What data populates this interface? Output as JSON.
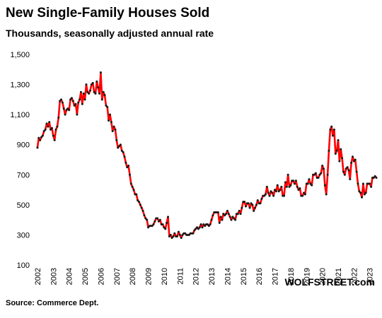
{
  "chart_data": {
    "type": "line",
    "title": "New Single-Family Houses Sold",
    "subtitle": "Thousands, seasonally adjusted annual rate",
    "source": "Source: Commerce Dept.",
    "watermark": "WOLFSTREET.com",
    "color": "#ff0000",
    "marker_color": "#1a1a1a",
    "categories": [
      "2002",
      null,
      null,
      null,
      null,
      null,
      null,
      null,
      null,
      null,
      null,
      null,
      "2003",
      null,
      null,
      null,
      null,
      null,
      null,
      null,
      null,
      null,
      null,
      null,
      "2004",
      null,
      null,
      null,
      null,
      null,
      null,
      null,
      null,
      null,
      null,
      null,
      "2005",
      null,
      null,
      null,
      null,
      null,
      null,
      null,
      null,
      null,
      null,
      null,
      "2006",
      null,
      null,
      null,
      null,
      null,
      null,
      null,
      null,
      null,
      null,
      null,
      "2007",
      null,
      null,
      null,
      null,
      null,
      null,
      null,
      null,
      null,
      null,
      null,
      "2008",
      null,
      null,
      null,
      null,
      null,
      null,
      null,
      null,
      null,
      null,
      null,
      "2009",
      null,
      null,
      null,
      null,
      null,
      null,
      null,
      null,
      null,
      null,
      null,
      "2010",
      null,
      null,
      null,
      null,
      null,
      null,
      null,
      null,
      null,
      null,
      null,
      "2011",
      null,
      null,
      null,
      null,
      null,
      null,
      null,
      null,
      null,
      null,
      null,
      "2012",
      null,
      null,
      null,
      null,
      null,
      null,
      null,
      null,
      null,
      null,
      null,
      "2013",
      null,
      null,
      null,
      null,
      null,
      null,
      null,
      null,
      null,
      null,
      null,
      "2014",
      null,
      null,
      null,
      null,
      null,
      null,
      null,
      null,
      null,
      null,
      null,
      "2015",
      null,
      null,
      null,
      null,
      null,
      null,
      null,
      null,
      null,
      null,
      null,
      "2016",
      null,
      null,
      null,
      null,
      null,
      null,
      null,
      null,
      null,
      null,
      null,
      "2017",
      null,
      null,
      null,
      null,
      null,
      null,
      null,
      null,
      null,
      null,
      null,
      "2018",
      null,
      null,
      null,
      null,
      null,
      null,
      null,
      null,
      null,
      null,
      null,
      "2019",
      null,
      null,
      null,
      null,
      null,
      null,
      null,
      null,
      null,
      null,
      null,
      "2020",
      null,
      null,
      null,
      null,
      null,
      null,
      null,
      null,
      null,
      null,
      null,
      "2021",
      null,
      null,
      null,
      null,
      null,
      null,
      null,
      null,
      null,
      null,
      null,
      "2022",
      null,
      null,
      null,
      null,
      null,
      null,
      null,
      null,
      null,
      null,
      null,
      "2023",
      null,
      null,
      null,
      null,
      null
    ],
    "values": [
      880,
      945,
      930,
      950,
      960,
      990,
      1000,
      1040,
      1020,
      1050,
      1000,
      1010,
      960,
      930,
      1000,
      1020,
      1080,
      1190,
      1200,
      1180,
      1140,
      1100,
      1130,
      1140,
      1130,
      1200,
      1210,
      1190,
      1160,
      1170,
      1100,
      1180,
      1200,
      1250,
      1170,
      1240,
      1200,
      1300,
      1250,
      1240,
      1260,
      1300,
      1310,
      1250,
      1240,
      1320,
      1280,
      1240,
      1380,
      1200,
      1250,
      1230,
      1160,
      1150,
      1060,
      1100,
      1050,
      990,
      1020,
      1000,
      930,
      880,
      890,
      900,
      860,
      850,
      820,
      780,
      750,
      760,
      700,
      640,
      620,
      600,
      570,
      570,
      530,
      520,
      500,
      480,
      460,
      430,
      410,
      400,
      350,
      360,
      360,
      360,
      370,
      390,
      410,
      410,
      390,
      400,
      370,
      370,
      350,
      340,
      380,
      420,
      290,
      300,
      280,
      290,
      310,
      290,
      290,
      320,
      300,
      280,
      300,
      310,
      310,
      300,
      300,
      300,
      310,
      310,
      310,
      330,
      340,
      350,
      340,
      350,
      370,
      350,
      370,
      360,
      370,
      370,
      360,
      370,
      400,
      430,
      450,
      450,
      450,
      450,
      380,
      420,
      400,
      440,
      430,
      440,
      460,
      440,
      420,
      400,
      420,
      410,
      400,
      440,
      440,
      460,
      440,
      480,
      520,
      520,
      490,
      510,
      510,
      480,
      510,
      500,
      460,
      480,
      500,
      530,
      510,
      510,
      540,
      560,
      560,
      570,
      620,
      580,
      560,
      590,
      580,
      560,
      600,
      590,
      630,
      590,
      600,
      620,
      560,
      560,
      650,
      620,
      700,
      620,
      630,
      660,
      660,
      640,
      660,
      620,
      600,
      610,
      560,
      560,
      580,
      570,
      640,
      640,
      670,
      640,
      630,
      700,
      700,
      710,
      680,
      680,
      700,
      710,
      760,
      740,
      630,
      570,
      700,
      860,
      1000,
      1020,
      960,
      1000,
      840,
      860,
      930,
      790,
      870,
      810,
      720,
      700,
      740,
      750,
      730,
      670,
      780,
      820,
      790,
      800,
      720,
      640,
      590,
      580,
      550,
      640,
      570,
      580,
      640,
      640,
      640,
      620,
      680,
      680,
      690,
      680
    ],
    "ylim": [
      100,
      1500
    ],
    "yticks": [
      100,
      300,
      500,
      700,
      900,
      {
        "value": 1100,
        "label": "1,100"
      },
      {
        "value": 1300,
        "label": "1,300"
      },
      {
        "value": 1500,
        "label": "1,500"
      }
    ],
    "grid": false
  }
}
